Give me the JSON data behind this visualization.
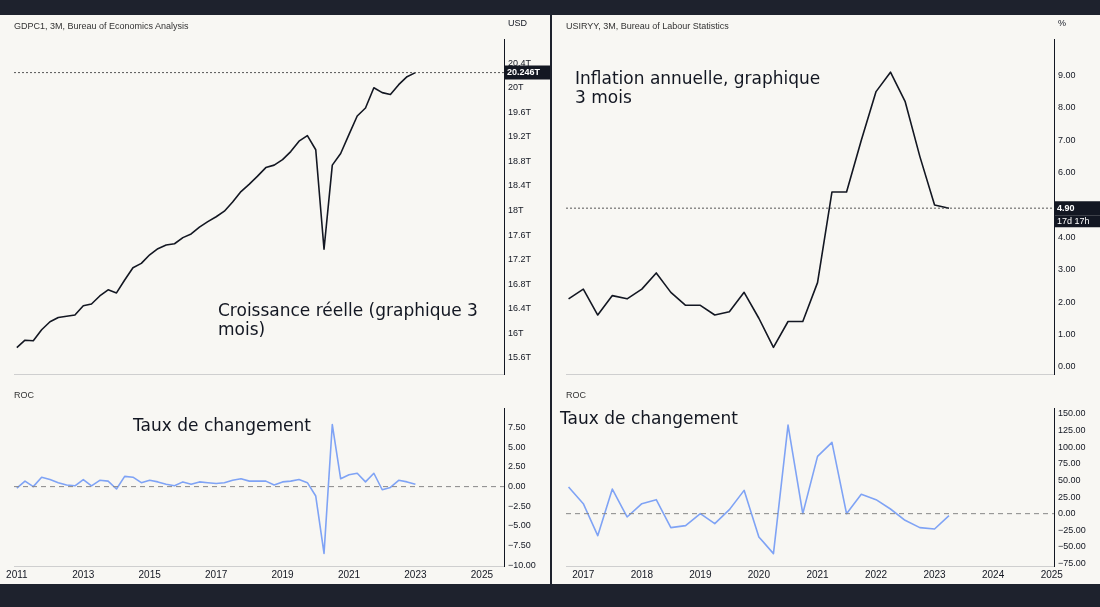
{
  "chart_data": [
    {
      "type": "line",
      "title": "GDPC1, 3M, Bureau of Economics Analysis",
      "ylabel": "USD",
      "color": "#131722",
      "line_style": "solid",
      "x": [
        "2011-01",
        "2011-04",
        "2011-07",
        "2011-10",
        "2012-01",
        "2012-04",
        "2012-07",
        "2012-10",
        "2013-01",
        "2013-04",
        "2013-07",
        "2013-10",
        "2014-01",
        "2014-04",
        "2014-07",
        "2014-10",
        "2015-01",
        "2015-04",
        "2015-07",
        "2015-10",
        "2016-01",
        "2016-04",
        "2016-07",
        "2016-10",
        "2017-01",
        "2017-04",
        "2017-07",
        "2017-10",
        "2018-01",
        "2018-04",
        "2018-07",
        "2018-10",
        "2019-01",
        "2019-04",
        "2019-07",
        "2019-10",
        "2020-01",
        "2020-04",
        "2020-07",
        "2020-10",
        "2021-01",
        "2021-04",
        "2021-07",
        "2021-10",
        "2022-01",
        "2022-04",
        "2022-07",
        "2022-10",
        "2023-01"
      ],
      "values": [
        15.77,
        15.89,
        15.88,
        16.06,
        16.19,
        16.26,
        16.28,
        16.3,
        16.45,
        16.48,
        16.61,
        16.71,
        16.66,
        16.87,
        17.07,
        17.14,
        17.28,
        17.38,
        17.44,
        17.46,
        17.56,
        17.62,
        17.73,
        17.82,
        17.9,
        17.99,
        18.14,
        18.31,
        18.43,
        18.56,
        18.7,
        18.74,
        18.83,
        18.96,
        19.13,
        19.22,
        18.99,
        17.37,
        18.74,
        18.93,
        19.24,
        19.54,
        19.67,
        20.0,
        19.92,
        19.89,
        20.05,
        20.18,
        20.246
      ],
      "xlim": [
        "2010-12-01",
        "2025-09-01"
      ],
      "ylim": [
        15.33,
        20.78
      ],
      "yticks": [
        {
          "value": 15.6,
          "label": "15.6T"
        },
        {
          "value": 16,
          "label": "16T"
        },
        {
          "value": 16.4,
          "label": "16.4T"
        },
        {
          "value": 16.8,
          "label": "16.8T"
        },
        {
          "value": 17.2,
          "label": "17.2T"
        },
        {
          "value": 17.6,
          "label": "17.6T"
        },
        {
          "value": 18,
          "label": "18T"
        },
        {
          "value": 18.4,
          "label": "18.4T"
        },
        {
          "value": 18.8,
          "label": "18.8T"
        },
        {
          "value": 19.2,
          "label": "19.2T"
        },
        {
          "value": 19.6,
          "label": "19.6T"
        },
        {
          "value": 20,
          "label": "20T"
        },
        {
          "value": 20.4,
          "label": "20.4T"
        }
      ],
      "tick_labels": "y",
      "ref_lines": [
        {
          "axis": "y",
          "value": 20.246,
          "label": "20.246T",
          "color": "#555555",
          "line_style": "dotted"
        }
      ],
      "annotations": [
        "Croissance réelle (graphique 3 mois)"
      ]
    },
    {
      "type": "line",
      "title": "USIRYY, 3M, Bureau of Labour Statistics",
      "ylabel": "%",
      "color": "#131722",
      "line_style": "solid",
      "x": [
        "2016-10",
        "2017-01",
        "2017-04",
        "2017-07",
        "2017-10",
        "2018-01",
        "2018-04",
        "2018-07",
        "2018-10",
        "2019-01",
        "2019-04",
        "2019-07",
        "2019-10",
        "2020-01",
        "2020-04",
        "2020-07",
        "2020-10",
        "2021-01",
        "2021-04",
        "2021-07",
        "2021-10",
        "2022-01",
        "2022-04",
        "2022-07",
        "2022-10",
        "2023-01",
        "2023-04"
      ],
      "values": [
        2.1,
        2.4,
        1.6,
        2.2,
        2.1,
        2.4,
        2.9,
        2.3,
        1.9,
        1.9,
        1.6,
        1.7,
        2.3,
        1.5,
        0.6,
        1.4,
        1.4,
        2.6,
        5.4,
        5.4,
        7.0,
        8.5,
        9.1,
        8.2,
        6.5,
        5.0,
        4.9
      ],
      "xlim": [
        "2016-09-15",
        "2025-01-15"
      ],
      "ylim": [
        -0.24,
        10.1
      ],
      "yticks": [
        {
          "value": 0,
          "label": "0.00"
        },
        {
          "value": 1,
          "label": "1.00"
        },
        {
          "value": 2,
          "label": "2.00"
        },
        {
          "value": 3,
          "label": "3.00"
        },
        {
          "value": 4,
          "label": "4.00"
        },
        {
          "value": 6,
          "label": "6.00"
        },
        {
          "value": 7,
          "label": "7.00"
        },
        {
          "value": 8,
          "label": "8.00"
        },
        {
          "value": 9,
          "label": "9.00"
        }
      ],
      "tick_labels": "y",
      "ref_lines": [
        {
          "axis": "y",
          "value": 4.9,
          "label": "4.90",
          "color": "#555555",
          "line_style": "dotted"
        }
      ],
      "annotations": [
        "Inflation annuelle, graphique 3 mois",
        "17d 17h"
      ]
    },
    {
      "type": "line",
      "title": "ROC",
      "color": "#7fa3f5",
      "line_style": "solid",
      "x": [
        "2011-01",
        "2011-04",
        "2011-07",
        "2011-10",
        "2012-01",
        "2012-04",
        "2012-07",
        "2012-10",
        "2013-01",
        "2013-04",
        "2013-07",
        "2013-10",
        "2014-01",
        "2014-04",
        "2014-07",
        "2014-10",
        "2015-01",
        "2015-04",
        "2015-07",
        "2015-10",
        "2016-01",
        "2016-04",
        "2016-07",
        "2016-10",
        "2017-01",
        "2017-04",
        "2017-07",
        "2017-10",
        "2018-01",
        "2018-04",
        "2018-07",
        "2018-10",
        "2019-01",
        "2019-04",
        "2019-07",
        "2019-10",
        "2020-01",
        "2020-04",
        "2020-07",
        "2020-10",
        "2021-01",
        "2021-04",
        "2021-07",
        "2021-10",
        "2022-01",
        "2022-04",
        "2022-07",
        "2022-10",
        "2023-01"
      ],
      "values": [
        -0.2,
        0.7,
        0,
        1.2,
        0.9,
        0.5,
        0.2,
        0.1,
        0.9,
        0.1,
        0.8,
        0.7,
        -0.3,
        1.3,
        1.2,
        0.5,
        0.8,
        0.6,
        0.3,
        0.1,
        0.6,
        0.3,
        0.6,
        0.5,
        0.4,
        0.5,
        0.8,
        1.0,
        0.7,
        0.7,
        0.7,
        0.2,
        0.6,
        0.7,
        0.9,
        0.5,
        -1.2,
        -8.5,
        7.9,
        1.0,
        1.5,
        1.7,
        0.6,
        1.7,
        -0.4,
        -0.1,
        0.8,
        0.6,
        0.3
      ],
      "xlim": [
        "2010-12-01",
        "2025-09-01"
      ],
      "ylim": [
        -10.1,
        9.9
      ],
      "xticks": [
        "2011",
        "2013",
        "2015",
        "2017",
        "2019",
        "2021",
        "2023",
        "2025"
      ],
      "yticks": [
        {
          "value": -10,
          "label": "−10.00"
        },
        {
          "value": -7.5,
          "label": "−7.50"
        },
        {
          "value": -5,
          "label": "−5.00"
        },
        {
          "value": -2.5,
          "label": "−2.50"
        },
        {
          "value": 0,
          "label": "0.00"
        },
        {
          "value": 2.5,
          "label": "2.50"
        },
        {
          "value": 5,
          "label": "5.00"
        },
        {
          "value": 7.5,
          "label": "7.50"
        }
      ],
      "ref_lines": [
        {
          "axis": "y",
          "value": 0,
          "color": "#888888",
          "line_style": "dashed"
        }
      ],
      "annotations": [
        "Taux de changement"
      ]
    },
    {
      "type": "line",
      "title": "ROC",
      "color": "#7fa3f5",
      "line_style": "solid",
      "x": [
        "2016-10",
        "2017-01",
        "2017-04",
        "2017-07",
        "2017-10",
        "2018-01",
        "2018-04",
        "2018-07",
        "2018-10",
        "2019-01",
        "2019-04",
        "2019-07",
        "2019-10",
        "2020-01",
        "2020-04",
        "2020-07",
        "2020-10",
        "2021-01",
        "2021-04",
        "2021-07",
        "2021-10",
        "2022-01",
        "2022-04",
        "2022-07",
        "2022-10",
        "2023-01",
        "2023-04"
      ],
      "values": [
        40,
        15,
        -33,
        37,
        -5,
        15,
        21,
        -21,
        -18,
        0,
        -15,
        6,
        35,
        -35,
        -60,
        133,
        0,
        86,
        107,
        0,
        29,
        21,
        7,
        -10,
        -21,
        -23,
        -3
      ],
      "xlim": [
        "2016-09-15",
        "2025-01-15"
      ],
      "ylim": [
        -78.6,
        157.5
      ],
      "xticks": [
        "2017",
        "2018",
        "2019",
        "2020",
        "2021",
        "2022",
        "2023",
        "2024",
        "2025"
      ],
      "yticks": [
        {
          "value": -75,
          "label": "−75.00"
        },
        {
          "value": -50,
          "label": "−50.00"
        },
        {
          "value": -25,
          "label": "−25.00"
        },
        {
          "value": 0,
          "label": "0.00"
        },
        {
          "value": 25,
          "label": "25.00"
        },
        {
          "value": 50,
          "label": "50.00"
        },
        {
          "value": 75,
          "label": "75.00"
        },
        {
          "value": 100,
          "label": "100.00"
        },
        {
          "value": 125,
          "label": "125.00"
        },
        {
          "value": 150,
          "label": "150.00"
        }
      ],
      "ref_lines": [
        {
          "axis": "y",
          "value": 0,
          "color": "#888888",
          "line_style": "dashed"
        }
      ],
      "annotations": [
        "Taux de changement"
      ]
    }
  ]
}
